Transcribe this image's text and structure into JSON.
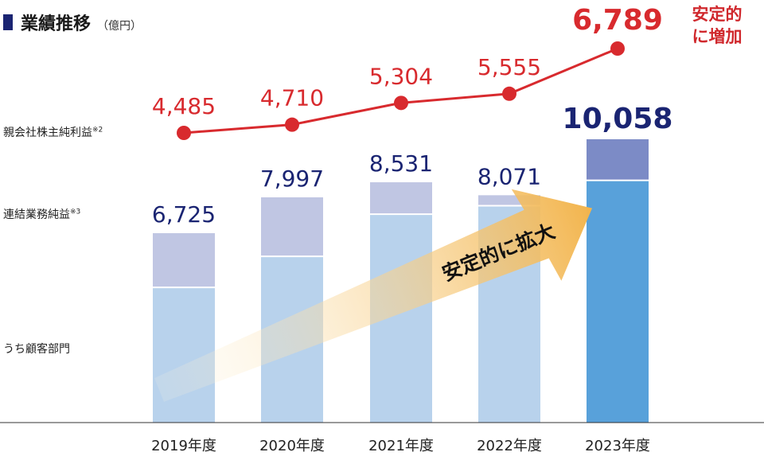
{
  "title": "業績推移",
  "unit": "（億円）",
  "side_labels": {
    "net_income": "親会社株主純利益",
    "net_income_note": "※2",
    "business_profit": "連結業務純益",
    "business_profit_note": "※3",
    "segment": "うち顧客部門"
  },
  "callout": {
    "line1": "安定的",
    "line2": "に増加"
  },
  "arrow_label": "安定的に拡大",
  "colors": {
    "line": "#d82a2e",
    "bar_upper": "#c0c6e3",
    "bar_lower": "#b8d2ec",
    "bar_upper_highlight": "#7c8bc6",
    "bar_lower_highlight": "#58a1da",
    "bar_total_text": "#1a2472",
    "line_text": "#d82a2e",
    "title_marker": "#1a2472",
    "arrow_start": "#fff6e0",
    "arrow_end": "#f2b44c"
  },
  "chart_data": {
    "type": "bar",
    "categories": [
      "2019年度",
      "2020年度",
      "2021年度",
      "2022年度",
      "2023年度"
    ],
    "series": [
      {
        "name": "うち顧客部門",
        "values": [
          4800,
          5900,
          7400,
          7700,
          8600
        ]
      },
      {
        "name": "連結業務純益",
        "values": [
          6725,
          7997,
          8531,
          8071,
          10058
        ]
      },
      {
        "name": "親会社株主純利益",
        "type": "line",
        "values": [
          4485,
          4710,
          5304,
          5555,
          6789
        ]
      }
    ],
    "total_labels": [
      "6,725",
      "7,997",
      "8,531",
      "8,071",
      "10,058"
    ],
    "line_labels": [
      "4,485",
      "4,710",
      "5,304",
      "5,555",
      "6,789"
    ],
    "highlight_index": 4,
    "grid": false,
    "legend": "left side labels"
  }
}
